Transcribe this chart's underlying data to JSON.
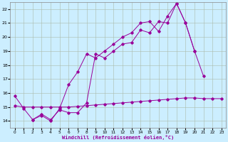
{
  "xlabel": "Windchill (Refroidissement éolien,°C)",
  "bg_color": "#cceeff",
  "line_color": "#990099",
  "xlim": [
    -0.5,
    23.5
  ],
  "ylim": [
    13.5,
    22.5
  ],
  "xticks": [
    0,
    1,
    2,
    3,
    4,
    5,
    6,
    7,
    8,
    9,
    10,
    11,
    12,
    13,
    14,
    15,
    16,
    17,
    18,
    19,
    20,
    21,
    22,
    23
  ],
  "yticks": [
    14,
    15,
    16,
    17,
    18,
    19,
    20,
    21,
    22
  ],
  "line1_x": [
    0,
    1,
    2,
    3,
    4,
    5,
    6,
    7,
    8,
    9,
    10,
    11,
    12,
    13,
    14,
    15,
    16,
    17,
    18,
    19,
    20,
    21,
    22
  ],
  "line1_y": [
    15.8,
    14.9,
    14.1,
    14.5,
    14.1,
    14.8,
    14.6,
    14.6,
    15.3,
    18.8,
    18.5,
    19.0,
    19.5,
    19.6,
    20.5,
    20.3,
    21.1,
    21.0,
    22.4,
    21.0,
    19.0,
    17.2,
    null
  ],
  "line2_x": [
    0,
    1,
    2,
    3,
    4,
    5,
    6,
    7,
    8,
    9,
    10,
    11,
    12,
    13,
    14,
    15,
    16,
    17,
    18,
    19,
    20,
    21,
    22
  ],
  "line2_y": [
    null,
    null,
    14.1,
    14.4,
    14.0,
    14.9,
    16.6,
    17.5,
    18.8,
    18.5,
    19.0,
    19.5,
    20.0,
    20.3,
    21.0,
    21.1,
    20.4,
    21.5,
    22.4,
    21.0,
    19.0,
    null,
    null
  ],
  "line3_x": [
    0,
    1,
    2,
    3,
    4,
    5,
    6,
    7,
    8,
    9,
    10,
    11,
    12,
    13,
    14,
    15,
    16,
    17,
    18,
    19,
    20,
    21,
    22,
    23
  ],
  "line3_y": [
    15.1,
    15.0,
    15.0,
    15.0,
    15.0,
    15.0,
    15.0,
    15.05,
    15.1,
    15.15,
    15.2,
    15.25,
    15.3,
    15.35,
    15.4,
    15.45,
    15.5,
    15.55,
    15.6,
    15.65,
    15.65,
    15.6,
    15.6,
    15.6
  ]
}
